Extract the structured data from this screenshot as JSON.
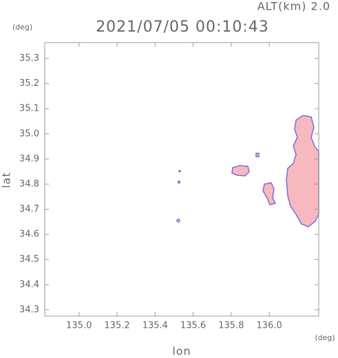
{
  "chart_data": {
    "type": "radar",
    "title": "2021/07/05 00:10:43",
    "altitude": "ALT(km)  2.0",
    "y_unit": "(deg)",
    "x_unit": "(deg)",
    "xlabel": "lon",
    "ylabel": "lat",
    "xlim": [
      134.82,
      136.26
    ],
    "xticks": [
      {
        "value": 135,
        "label": "135.0"
      },
      135.2,
      135.4,
      135.6,
      135.8,
      {
        "value": 136,
        "label": "136.0"
      }
    ],
    "ylim": [
      34.275,
      35.363
    ],
    "yticks": [
      34.3,
      34.4,
      34.5,
      34.6,
      34.7,
      34.8,
      34.9,
      {
        "value": 35,
        "label": "35.0"
      },
      35.1,
      35.2,
      35.3
    ],
    "echo_color": "#f7b8bf",
    "edge_color": "#7b6cd8"
  }
}
